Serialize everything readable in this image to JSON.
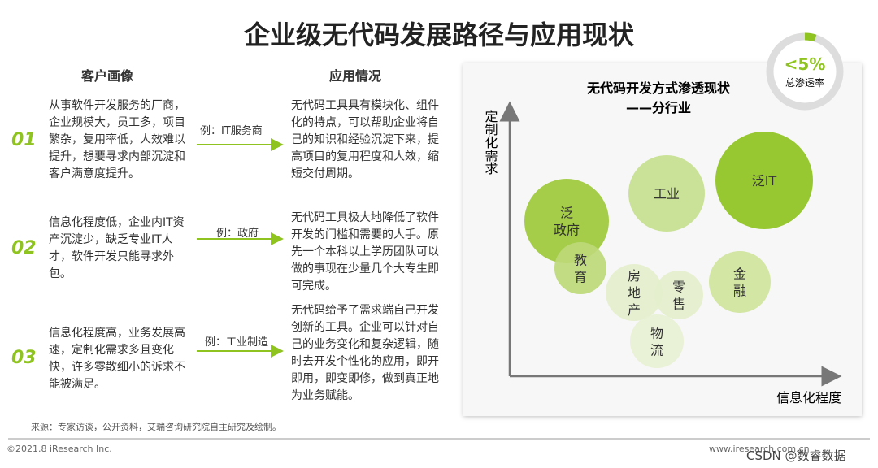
{
  "title": "企业级无代码发展路径与应用现状",
  "headers": {
    "profile": "客户画像",
    "application": "应用情况"
  },
  "rows": [
    {
      "number": "01",
      "profile": "从事软件开发服务的厂商，企业规模大，员工多，项目繁杂，复用率低，人效难以提升，想要寻求内部沉淀和客户满意度提升。",
      "example": "例：IT服务商",
      "application": "无代码工具具有模块化、组件化的特点，可以帮助企业将自己的知识和经验沉淀下来，提高项目的复用程度和人效，缩短交付周期。"
    },
    {
      "number": "02",
      "profile": "信息化程度低，企业内IT资产沉淀少，缺乏专业IT人才，软件开发只能寻求外包。",
      "example": "例：政府",
      "application": "无代码工具极大地降低了软件开发的门槛和需要的人手。原先一个本科以上学历团队可以做的事现在少量几个大专生即可完成。"
    },
    {
      "number": "03",
      "profile": "信息化程度高，业务发展高速，定制化需求多且变化快，许多零散细小的诉求不能被满足。",
      "example": "例：工业制造",
      "application": "无代码给予了需求端自己开发创新的工具。企业可以针对自己的业务变化和复杂逻辑，随时去开发个性化的应用，即开即用，即变即修，做到真正地为业务赋能。"
    }
  ],
  "chart": {
    "title": "无代码开发方式渗透现状",
    "subtitle": "——分行业",
    "y_axis": "定制化需求",
    "x_axis": "信息化程度",
    "bubbles": [
      {
        "lines": [
          "泛",
          "政府"
        ]
      },
      {
        "lines": [
          "教",
          "育"
        ]
      },
      {
        "lines": [
          "工业"
        ]
      },
      {
        "lines": [
          "泛IT"
        ]
      },
      {
        "lines": [
          "房",
          "地",
          "产"
        ]
      },
      {
        "lines": [
          "零",
          "售"
        ]
      },
      {
        "lines": [
          "金",
          "融"
        ]
      },
      {
        "lines": [
          "物",
          "流"
        ]
      }
    ]
  },
  "badge": {
    "value": "<5%",
    "label": "总渗透率"
  },
  "source": "来源：专家访谈，公开资料，艾瑞咨询研究院自主研究及绘制。",
  "copyright": "©2021.8 iResearch Inc.",
  "website": "www.iresearch.com.cn",
  "watermark": "CSDN @数睿数据"
}
